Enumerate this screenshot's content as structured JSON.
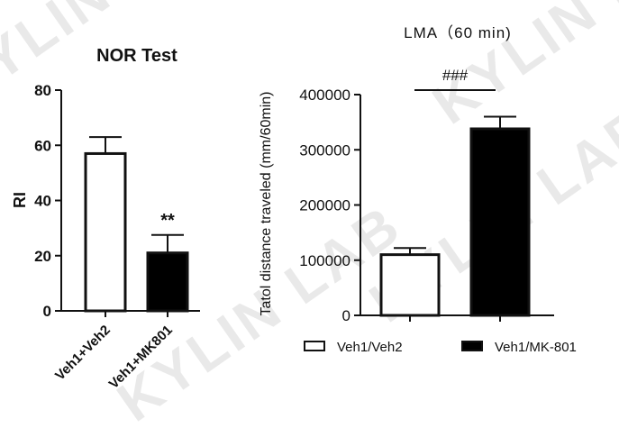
{
  "watermark": "KYLIN LAB",
  "colors": {
    "bar_control": "#ffffff",
    "bar_treatment": "#000000",
    "axis": "#111111"
  },
  "chart_data": [
    {
      "type": "bar",
      "title": "NOR Test",
      "xlabel": "",
      "ylabel": "RI",
      "ylim": [
        0,
        80
      ],
      "yticks": [
        "0",
        "20",
        "40",
        "60",
        "80"
      ],
      "categories": [
        "Veh1+Veh2",
        "Veh1+MK801"
      ],
      "values": [
        57,
        21
      ],
      "errors": [
        6,
        6.5
      ],
      "fill_colors": [
        "#ffffff",
        "#000000"
      ],
      "annotations": [
        {
          "category": "Veh1+MK801",
          "text": "**"
        }
      ],
      "grid": false
    },
    {
      "type": "bar",
      "title": "LMA（60 min)",
      "xlabel": "",
      "ylabel": "Tatol distance traveled (mm/60min)",
      "ylim": [
        0,
        400000
      ],
      "yticks": [
        "0",
        "100000",
        "200000",
        "300000",
        "400000"
      ],
      "categories": [
        "Veh1/Veh2",
        "Veh1/MK-801"
      ],
      "values": [
        110000,
        338000
      ],
      "errors": [
        12000,
        22000
      ],
      "fill_colors": [
        "#ffffff",
        "#000000"
      ],
      "significance": {
        "text": "###"
      },
      "legend": {
        "position": "bottom",
        "entries": [
          {
            "label": "Veh1/Veh2",
            "color": "#ffffff"
          },
          {
            "label": "Veh1/MK-801",
            "color": "#000000"
          }
        ]
      },
      "grid": false
    }
  ]
}
